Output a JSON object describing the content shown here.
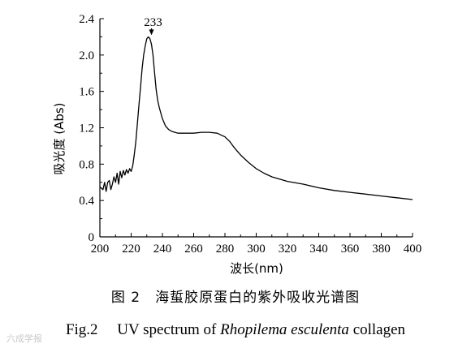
{
  "chart_data": {
    "type": "line",
    "title": "",
    "xlabel": "波长(nm)",
    "ylabel": "吸光度 (Abs)",
    "xlim": [
      200,
      400
    ],
    "ylim": [
      0,
      2.4
    ],
    "x_ticks": [
      "200",
      "220",
      "240",
      "260",
      "280",
      "300",
      "320",
      "340",
      "360",
      "380",
      "400"
    ],
    "y_ticks": [
      "0",
      "0.4",
      "0.8",
      "1.2",
      "1.6",
      "2.0",
      "2.4"
    ],
    "annotations": [
      {
        "text": "233",
        "x": 233,
        "y": 2.2
      }
    ],
    "series": [
      {
        "x": [
          200,
          202,
          203,
          204,
          205,
          206,
          207,
          208,
          209,
          210,
          211,
          212,
          213,
          214,
          215,
          216,
          217,
          218,
          219,
          220,
          221,
          222,
          223,
          224,
          225,
          226,
          227,
          228,
          229,
          230,
          231,
          232,
          233,
          234,
          235,
          236,
          237,
          238,
          240,
          242,
          244,
          246,
          248,
          250,
          255,
          260,
          265,
          270,
          275,
          280,
          283,
          286,
          290,
          295,
          300,
          305,
          310,
          320,
          330,
          340,
          350,
          360,
          370,
          380,
          390,
          400
        ],
        "y": [
          0.55,
          0.52,
          0.6,
          0.5,
          0.6,
          0.62,
          0.52,
          0.58,
          0.66,
          0.6,
          0.7,
          0.58,
          0.72,
          0.65,
          0.73,
          0.68,
          0.74,
          0.7,
          0.75,
          0.72,
          0.78,
          0.9,
          1.05,
          1.25,
          1.45,
          1.65,
          1.85,
          2.0,
          2.1,
          2.18,
          2.2,
          2.18,
          2.12,
          2.0,
          1.8,
          1.62,
          1.5,
          1.42,
          1.3,
          1.22,
          1.18,
          1.16,
          1.15,
          1.14,
          1.14,
          1.14,
          1.15,
          1.15,
          1.14,
          1.1,
          1.05,
          0.98,
          0.9,
          0.82,
          0.75,
          0.7,
          0.66,
          0.61,
          0.58,
          0.54,
          0.51,
          0.49,
          0.47,
          0.45,
          0.43,
          0.41
        ]
      }
    ]
  },
  "caption_cn": "图 2　海蜇胶原蛋白的紫外吸收光谱图",
  "caption_en_prefix": "Fig.2　 UV spectrum of ",
  "caption_en_species": "Rhopilema esculenta",
  "caption_en_suffix": " collagen",
  "watermark": "六成学报"
}
